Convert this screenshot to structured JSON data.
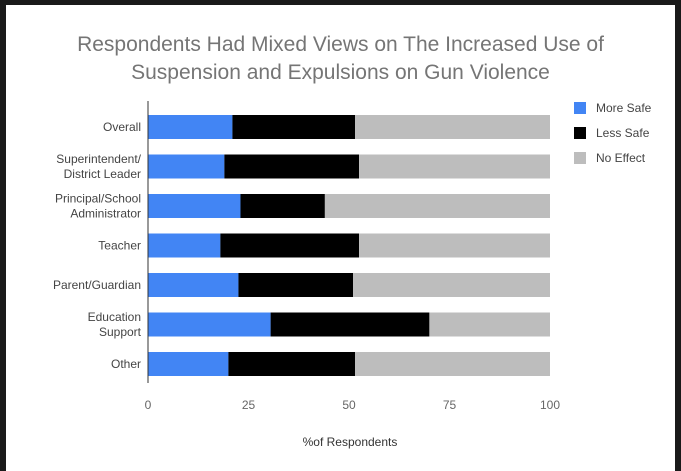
{
  "chart_data": {
    "type": "bar",
    "orientation": "horizontal",
    "stacked": true,
    "title_lines": [
      "Respondents Had Mixed Views on The Increased Use of",
      "Suspension and Expulsions on Gun Violence"
    ],
    "categories": [
      [
        "Overall"
      ],
      [
        "Superintendent/",
        "District Leader"
      ],
      [
        "Principal/School",
        "Administrator"
      ],
      [
        "Teacher"
      ],
      [
        "Parent/Guardian"
      ],
      [
        "Education",
        "Support"
      ],
      [
        "Other"
      ]
    ],
    "series": [
      {
        "name": "More Safe",
        "color": "#4285f4",
        "values": [
          21,
          19,
          23,
          18,
          22.5,
          30.5,
          20
        ]
      },
      {
        "name": "Less Safe",
        "color": "#000000",
        "values": [
          30.5,
          33.5,
          21,
          34.5,
          28.5,
          39.5,
          31.5
        ]
      },
      {
        "name": "No Effect",
        "color": "#bdbdbd",
        "values": [
          48.5,
          47.5,
          56,
          47.5,
          49,
          30,
          48.5
        ]
      }
    ],
    "xlim": [
      0,
      100
    ],
    "xticks": [
      "0",
      "25",
      "50",
      "75",
      "100"
    ],
    "xlabel": "%of Respondents",
    "ylabel": "",
    "legend_position": "right",
    "grid": false
  }
}
